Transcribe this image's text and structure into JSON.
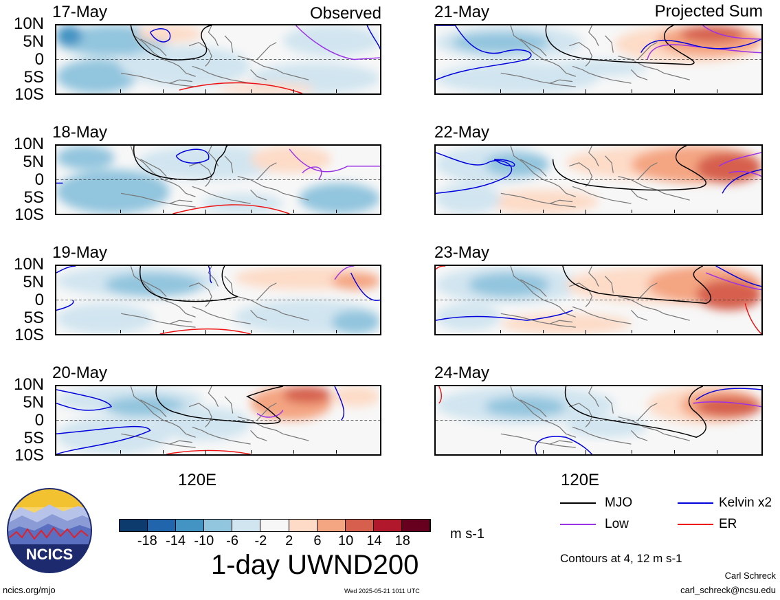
{
  "panels": {
    "left_header": "Observed",
    "right_header": "Projected Sum",
    "y_labels": [
      "10N",
      "5N",
      "0",
      "5S",
      "10S"
    ],
    "x_label": "120E",
    "left": [
      {
        "date": "17-May"
      },
      {
        "date": "18-May"
      },
      {
        "date": "19-May"
      },
      {
        "date": "20-May"
      }
    ],
    "right": [
      {
        "date": "21-May"
      },
      {
        "date": "22-May"
      },
      {
        "date": "23-May"
      },
      {
        "date": "24-May"
      }
    ]
  },
  "colorbar": {
    "labels": [
      "-18",
      "-14",
      "-10",
      "-6",
      "-2",
      "2",
      "6",
      "10",
      "14",
      "18"
    ],
    "colors": [
      "#0d3b6e",
      "#2166ac",
      "#4393c3",
      "#92c5de",
      "#d1e5f0",
      "#f7f7f7",
      "#fddbc7",
      "#f4a582",
      "#d6604d",
      "#b2182b",
      "#67001f"
    ],
    "units": "m s-1",
    "title": "1-day UWND200"
  },
  "legend": {
    "items": [
      {
        "label": "MJO",
        "color": "#000000"
      },
      {
        "label": "Kelvin x2",
        "color": "#0000dd"
      },
      {
        "label": "Low",
        "color": "#9a32e6"
      },
      {
        "label": "ER",
        "color": "#ee1111"
      }
    ],
    "contours_note": "Contours at 4, 12 m s-1"
  },
  "logo": {
    "text": "NCICS"
  },
  "footer": {
    "site": "ncics.org/mjo",
    "timestamp": "Wed 2025-05-21 1011 UTC",
    "author": "Carl Schreck",
    "email": "carl_schreck@ncsu.edu"
  }
}
